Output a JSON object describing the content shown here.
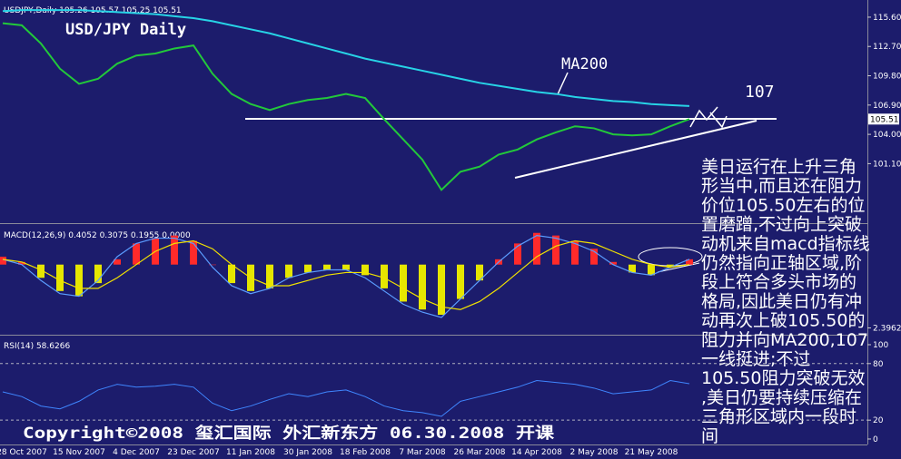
{
  "header": "USDJPY,Daily  105.26 105.57 105.25 105.51",
  "chart_data": [
    {
      "type": "line",
      "title": "USD/JPY Daily",
      "categories": [
        null,
        "28 Oct 2007",
        null,
        null,
        "15 Nov 2007",
        null,
        null,
        "4 Dec 2007",
        null,
        null,
        "23 Dec 2007",
        null,
        null,
        "11 Jan 2008",
        null,
        null,
        "30 Jan 2008",
        null,
        null,
        "18 Feb 2008",
        null,
        null,
        "7 Mar 2008",
        null,
        null,
        "26 Mar 2008",
        null,
        null,
        "14 Apr 2008",
        null,
        null,
        "2 May 2008",
        null,
        null,
        "21 May 2008",
        null,
        null
      ],
      "series": [
        {
          "color": "#22c93a",
          "values": [
            115.0,
            114.8,
            113.0,
            110.5,
            109.0,
            109.5,
            111.0,
            111.8,
            112.0,
            112.5,
            112.8,
            110.0,
            108.0,
            107.0,
            106.4,
            107.0,
            107.4,
            107.6,
            108.0,
            107.6,
            105.5,
            103.5,
            101.5,
            98.5,
            100.3,
            100.8,
            102.0,
            102.5,
            103.5,
            104.2,
            104.8,
            104.6,
            104.0,
            103.9,
            104.0,
            104.8,
            105.51
          ]
        },
        {
          "name": "MA200",
          "color": "#27d3e6",
          "values": [
            116.2,
            116.3,
            116.3,
            116.3,
            116.3,
            116.2,
            116.1,
            116.0,
            115.9,
            115.7,
            115.5,
            115.2,
            114.8,
            114.4,
            114.0,
            113.5,
            113.0,
            112.5,
            112.0,
            111.5,
            111.1,
            110.7,
            110.3,
            109.9,
            109.5,
            109.1,
            108.8,
            108.5,
            108.2,
            108.0,
            107.7,
            107.5,
            107.3,
            107.2,
            107.0,
            106.9,
            106.8
          ]
        }
      ],
      "ylim": [
        95.3,
        117.3
      ],
      "yticks": [
        {
          "value": 115.6,
          "label": "115.60"
        },
        {
          "value": 112.7,
          "label": "112.70"
        },
        {
          "value": 109.8,
          "label": "109.80"
        },
        {
          "value": 106.9,
          "label": "106.90"
        },
        {
          "value": 104.0,
          "label": "104.00"
        },
        {
          "value": 101.1,
          "label": "101.10"
        }
      ],
      "current_price": {
        "value": 105.51,
        "label": "105.51"
      },
      "annotations": [
        "107"
      ]
    },
    {
      "type": "macd",
      "title": "MACD(12,26,9) 0.4052 0.3075 0.1955 0.0000",
      "histogram": [
        0.3,
        0.1,
        -0.5,
        -1.0,
        -1.2,
        -0.7,
        0.2,
        0.8,
        1.0,
        1.1,
        0.9,
        0.0,
        -0.7,
        -1.0,
        -0.9,
        -0.5,
        -0.3,
        -0.2,
        -0.2,
        -0.4,
        -0.9,
        -1.4,
        -1.7,
        -1.9,
        -1.3,
        -0.6,
        0.2,
        0.8,
        1.2,
        1.1,
        0.9,
        0.6,
        0.1,
        -0.3,
        -0.4,
        -0.1,
        0.2
      ],
      "positive_color": "#ff2a2a",
      "negative_color": "#e6e600",
      "lines": [
        {
          "color": "#5a9cff",
          "values": [
            0.2,
            0.0,
            -0.6,
            -1.1,
            -1.2,
            -0.6,
            0.3,
            0.8,
            1.0,
            1.0,
            0.8,
            -0.1,
            -0.8,
            -1.1,
            -0.9,
            -0.5,
            -0.3,
            -0.2,
            -0.2,
            -0.5,
            -1.0,
            -1.5,
            -1.8,
            -2.0,
            -1.3,
            -0.6,
            0.1,
            0.7,
            1.1,
            1.0,
            0.8,
            0.5,
            0.0,
            -0.3,
            -0.4,
            -0.1,
            0.2
          ]
        },
        {
          "color": "#f2e200",
          "values": [
            0.2,
            0.1,
            -0.2,
            -0.6,
            -0.9,
            -0.9,
            -0.5,
            0.0,
            0.5,
            0.8,
            0.9,
            0.6,
            0.0,
            -0.5,
            -0.8,
            -0.8,
            -0.6,
            -0.4,
            -0.3,
            -0.3,
            -0.5,
            -0.9,
            -1.3,
            -1.6,
            -1.7,
            -1.4,
            -0.9,
            -0.3,
            0.3,
            0.7,
            0.9,
            0.8,
            0.5,
            0.2,
            0.0,
            -0.1,
            0.0
          ]
        }
      ],
      "ylim": [
        -2.62,
        1.5
      ],
      "yticks": [
        {
          "value": -2.3962,
          "label": "2.3962"
        }
      ]
    },
    {
      "type": "line",
      "title": "RSI(14) 58.6266",
      "series": [
        {
          "color": "#3f86ff",
          "values": [
            50,
            45,
            35,
            32,
            40,
            52,
            58,
            55,
            56,
            58,
            55,
            38,
            30,
            35,
            42,
            48,
            45,
            50,
            52,
            45,
            35,
            30,
            28,
            24,
            40,
            45,
            50,
            55,
            62,
            60,
            58,
            54,
            48,
            50,
            52,
            62,
            58.6266
          ]
        }
      ],
      "ylim": [
        -5.8,
        107.7
      ],
      "yticks": [
        100,
        80,
        20,
        0
      ],
      "levels": [
        80,
        20
      ]
    }
  ],
  "annotation": {
    "lines": [
      "美日运行在上升三角",
      "形当中,而且还在阻力",
      "价位105.50左右的位",
      "置磨蹭,不过向上突破",
      "动机来自macd指标线",
      "仍然指向正轴区域,阶",
      "段上符合多头市场的",
      "格局,因此美日仍有冲",
      "动再次上破105.50的",
      "阻力并向MA200,107",
      "一线挺进;不过",
      "105.50阻力突破无效",
      ",美日仍要持续压缩在",
      "三角形区域内一段时",
      "间"
    ]
  },
  "copyright": "Copyright©2008 玺汇国际 外汇新东方 06.30.2008 开课"
}
